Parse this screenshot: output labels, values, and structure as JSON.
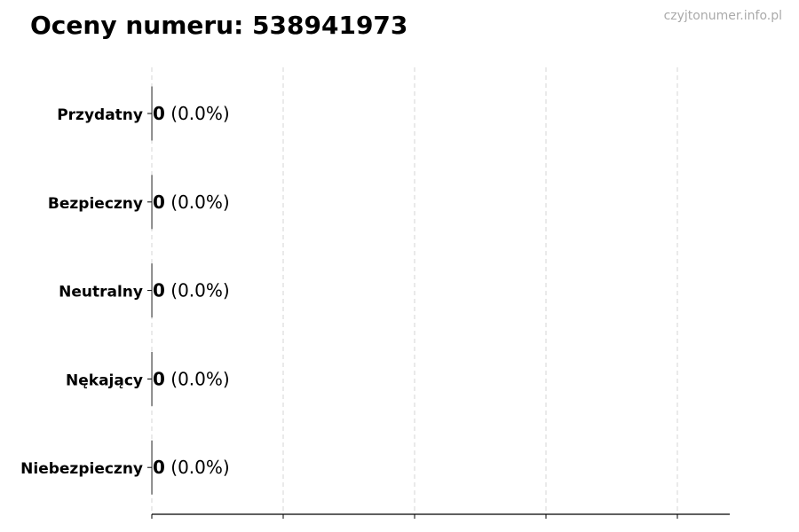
{
  "title": "Oceny numeru: 538941973",
  "watermark": "czyjtonumer.info.pl",
  "chart_data": {
    "type": "bar",
    "orientation": "horizontal",
    "title": "Oceny numeru: 538941973",
    "categories": [
      "Przydatny",
      "Bezpieczny",
      "Neutralny",
      "Nękający",
      "Niebezpieczny"
    ],
    "values": [
      0,
      0,
      0,
      0,
      0
    ],
    "percent_labels": [
      "(0.0%)",
      "(0.0%)",
      "(0.0%)",
      "(0.0%)",
      "(0.0%)"
    ],
    "xlim": [
      0,
      4.4
    ],
    "x_ticks": [
      0,
      1,
      2,
      3,
      4
    ],
    "x_tick_labels_shown": false,
    "grid": "x, dashed",
    "colors": {
      "bar_edge": "#333333",
      "grid": "#cccccc",
      "axis": "#000000",
      "watermark": "#aaaaaa"
    }
  }
}
